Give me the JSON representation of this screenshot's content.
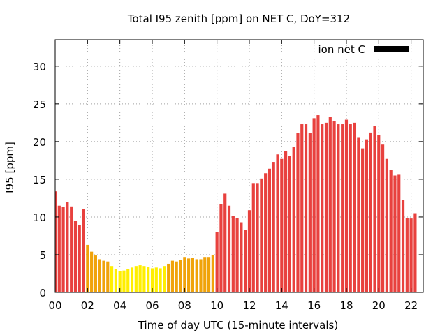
{
  "chart_data": {
    "type": "bar",
    "title": "Total I95 zenith [ppm] on NET C, DoY=312",
    "xlabel": "Time of day UTC (15-minute intervals)",
    "ylabel": "I95 [ppm]",
    "legend": {
      "label": "ion net C",
      "placement": "top-right",
      "swatch_color": "#000000"
    },
    "xlim": [
      0,
      22.75
    ],
    "ylim": [
      0,
      33.5
    ],
    "x_ticks": [
      "00",
      "02",
      "04",
      "06",
      "08",
      "10",
      "12",
      "14",
      "16",
      "18",
      "20",
      "22"
    ],
    "y_ticks": [
      "0",
      "5",
      "10",
      "15",
      "20",
      "25",
      "30"
    ],
    "grid": true,
    "bar_interval_hours": 0.25,
    "colors": {
      "high": "#e8413e",
      "mid": "#f0a30a",
      "low": "#ffee00",
      "frame": "#000000",
      "grid": "#a0a0a0"
    },
    "values": [
      13.4,
      11.5,
      11.3,
      12.0,
      11.4,
      9.5,
      8.9,
      11.1,
      6.3,
      5.4,
      4.9,
      4.4,
      4.2,
      4.1,
      3.5,
      3.1,
      2.8,
      2.9,
      3.1,
      3.3,
      3.5,
      3.6,
      3.5,
      3.4,
      3.2,
      3.3,
      3.2,
      3.5,
      3.8,
      4.2,
      4.1,
      4.3,
      4.7,
      4.5,
      4.6,
      4.4,
      4.4,
      4.7,
      4.7,
      5.0,
      8.0,
      11.7,
      13.1,
      11.5,
      10.1,
      9.9,
      9.3,
      8.3,
      10.9,
      14.5,
      14.5,
      15.1,
      15.8,
      16.4,
      17.3,
      18.3,
      17.7,
      18.7,
      18.1,
      19.3,
      21.1,
      22.3,
      22.3,
      21.1,
      23.1,
      23.5,
      22.3,
      22.5,
      23.3,
      22.7,
      22.3,
      22.3,
      22.9,
      22.3,
      22.5,
      20.5,
      19.1,
      20.3,
      21.2,
      22.1,
      20.9,
      19.6,
      17.7,
      16.2,
      15.5,
      15.6,
      12.3,
      9.9,
      9.8,
      10.5
    ]
  }
}
